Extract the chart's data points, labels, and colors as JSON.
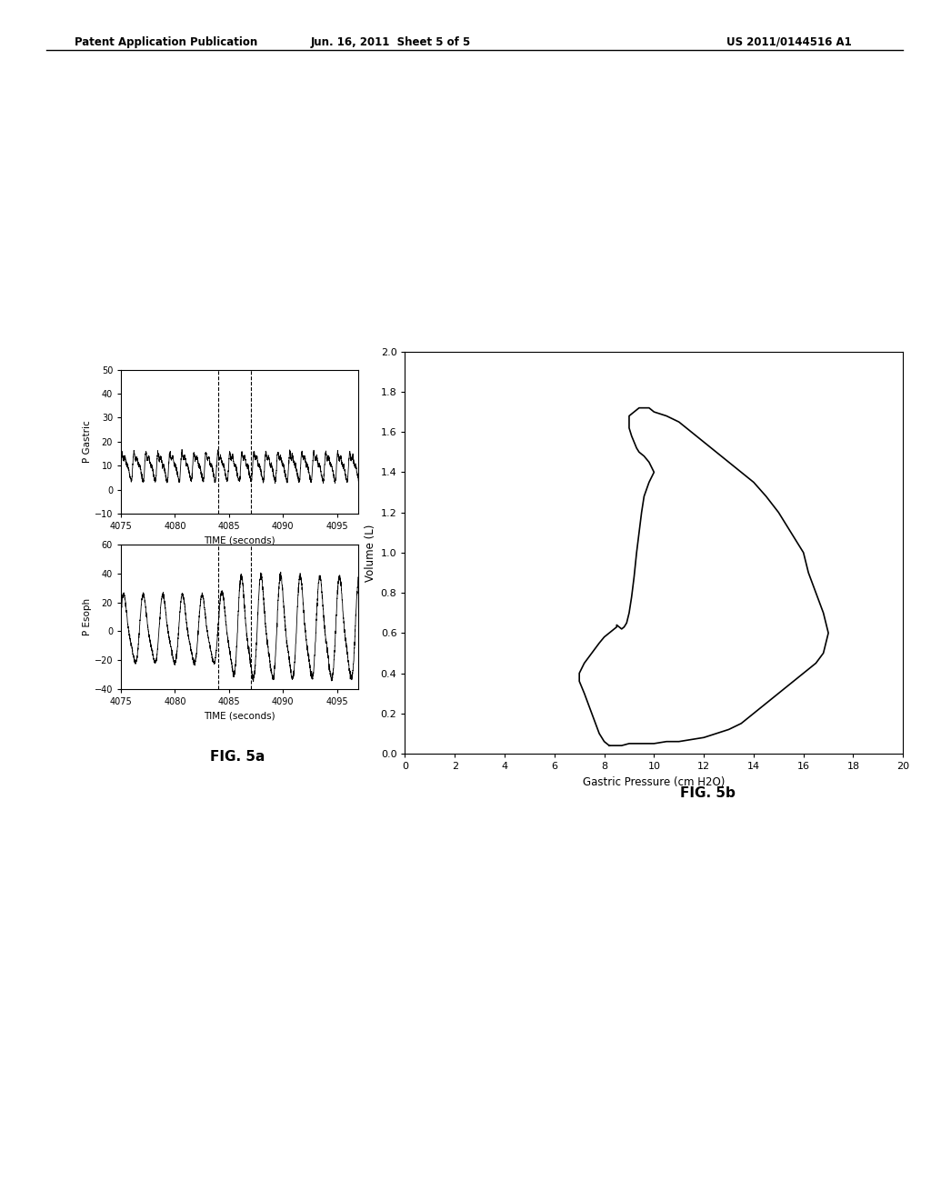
{
  "header_left": "Patent Application Publication",
  "header_mid": "Jun. 16, 2011  Sheet 5 of 5",
  "header_right": "US 2011/0144516 A1",
  "fig5a_label": "FIG. 5a",
  "fig5b_label": "FIG. 5b",
  "top_plot": {
    "ylabel": "P Gastric",
    "xlabel": "TIME (seconds)",
    "xlim": [
      4075,
      4097
    ],
    "ylim": [
      -10,
      50
    ],
    "yticks": [
      -10,
      0,
      10,
      20,
      30,
      40,
      50
    ],
    "xticks": [
      4075,
      4080,
      4085,
      4090,
      4095
    ],
    "vlines": [
      4084.0,
      4087.0
    ]
  },
  "bottom_plot": {
    "ylabel": "P Esoph",
    "xlabel": "TIME (seconds)",
    "xlim": [
      4075,
      4097
    ],
    "ylim": [
      -40,
      60
    ],
    "yticks": [
      -40,
      -20,
      0,
      20,
      40,
      60
    ],
    "xticks": [
      4075,
      4080,
      4085,
      4090,
      4095
    ],
    "vlines": [
      4084.0,
      4087.0
    ]
  },
  "scatter_plot": {
    "xlabel": "Gastric Pressure (cm H2O)",
    "ylabel": "Volume (L)",
    "xlim": [
      0,
      20
    ],
    "ylim": [
      0,
      2.0
    ],
    "xticks": [
      0.0,
      2.0,
      4.0,
      6.0,
      8.0,
      10.0,
      12.0,
      14.0,
      16.0,
      18.0,
      20.0
    ],
    "yticks": [
      0.0,
      0.2,
      0.4,
      0.6,
      0.8,
      1.0,
      1.2,
      1.4,
      1.6,
      1.8,
      2.0
    ]
  },
  "loop_gp": [
    8.2,
    8.0,
    7.8,
    7.5,
    7.2,
    7.0,
    7.0,
    7.2,
    7.5,
    7.8,
    8.0,
    8.2,
    8.4,
    8.5,
    8.5,
    8.6,
    8.7,
    8.8,
    8.9,
    9.0,
    9.1,
    9.2,
    9.3,
    9.4,
    9.5,
    9.6,
    9.8,
    10.0,
    9.8,
    9.6,
    9.4,
    9.3,
    9.2,
    9.1,
    9.0,
    9.0,
    9.0,
    9.2,
    9.4,
    9.6,
    9.8,
    10.0,
    10.5,
    11.0,
    11.5,
    12.0,
    12.5,
    13.0,
    13.5,
    14.0,
    14.5,
    15.0,
    15.5,
    16.0,
    16.2,
    16.5,
    16.8,
    17.0,
    16.8,
    16.5,
    16.2,
    16.0,
    15.8,
    15.5,
    15.0,
    14.5,
    14.0,
    13.5,
    13.0,
    12.5,
    12.0,
    11.5,
    11.0,
    10.5,
    10.0,
    9.5,
    9.0,
    8.7,
    8.5,
    8.3,
    8.2
  ],
  "loop_vol": [
    0.04,
    0.06,
    0.1,
    0.2,
    0.3,
    0.36,
    0.4,
    0.45,
    0.5,
    0.55,
    0.58,
    0.6,
    0.62,
    0.63,
    0.64,
    0.63,
    0.62,
    0.63,
    0.65,
    0.7,
    0.78,
    0.88,
    1.0,
    1.1,
    1.2,
    1.28,
    1.35,
    1.4,
    1.45,
    1.48,
    1.5,
    1.52,
    1.55,
    1.58,
    1.62,
    1.65,
    1.68,
    1.7,
    1.72,
    1.72,
    1.72,
    1.7,
    1.68,
    1.65,
    1.6,
    1.55,
    1.5,
    1.45,
    1.4,
    1.35,
    1.28,
    1.2,
    1.1,
    1.0,
    0.9,
    0.8,
    0.7,
    0.6,
    0.5,
    0.45,
    0.42,
    0.4,
    0.38,
    0.35,
    0.3,
    0.25,
    0.2,
    0.15,
    0.12,
    0.1,
    0.08,
    0.07,
    0.06,
    0.06,
    0.05,
    0.05,
    0.05,
    0.04,
    0.04,
    0.04,
    0.04
  ],
  "background_color": "#ffffff",
  "line_color": "#000000"
}
